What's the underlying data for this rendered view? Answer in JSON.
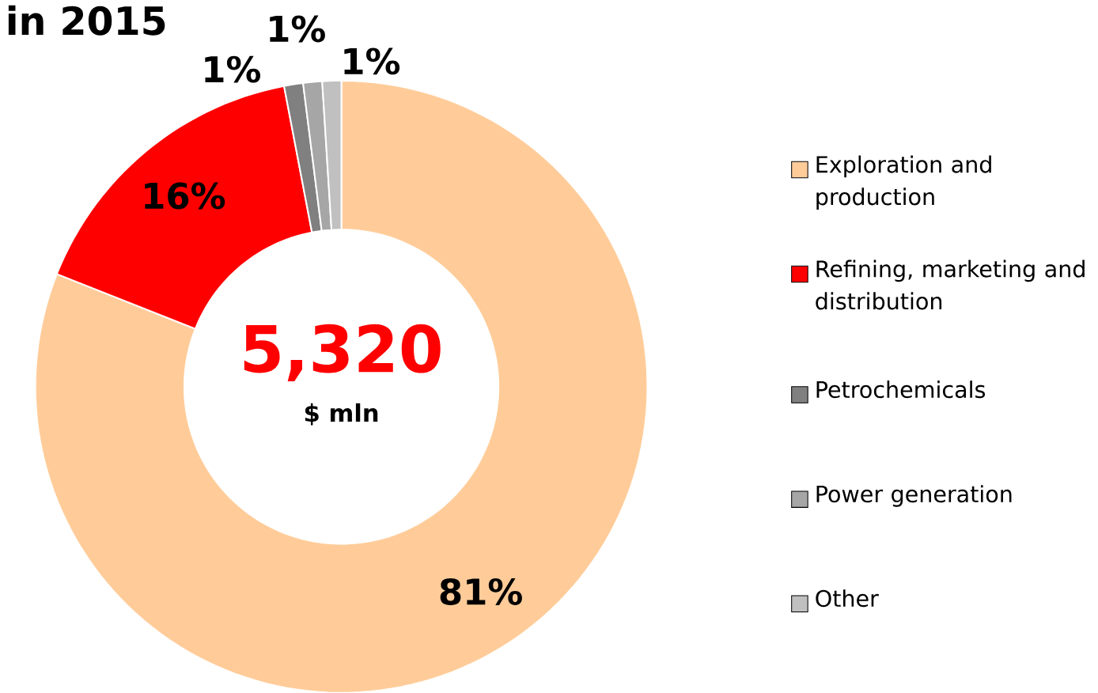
{
  "chart_data": {
    "type": "donut",
    "title": "in 2015",
    "categories": [
      "Exploration and production",
      "Refining, marketing and distribution",
      "Petrochemicals",
      "Power generation",
      "Other"
    ],
    "values": [
      81,
      16,
      1,
      1,
      1
    ],
    "colors": [
      "#ffcc99",
      "#ff0000",
      "#808080",
      "#a6a6a6",
      "#c0c0c0"
    ],
    "value_labels": [
      "81%",
      "16%",
      "1%",
      "1%",
      "1%"
    ],
    "annotations": [
      "5,320",
      "$ mln"
    ],
    "legend": "right"
  }
}
